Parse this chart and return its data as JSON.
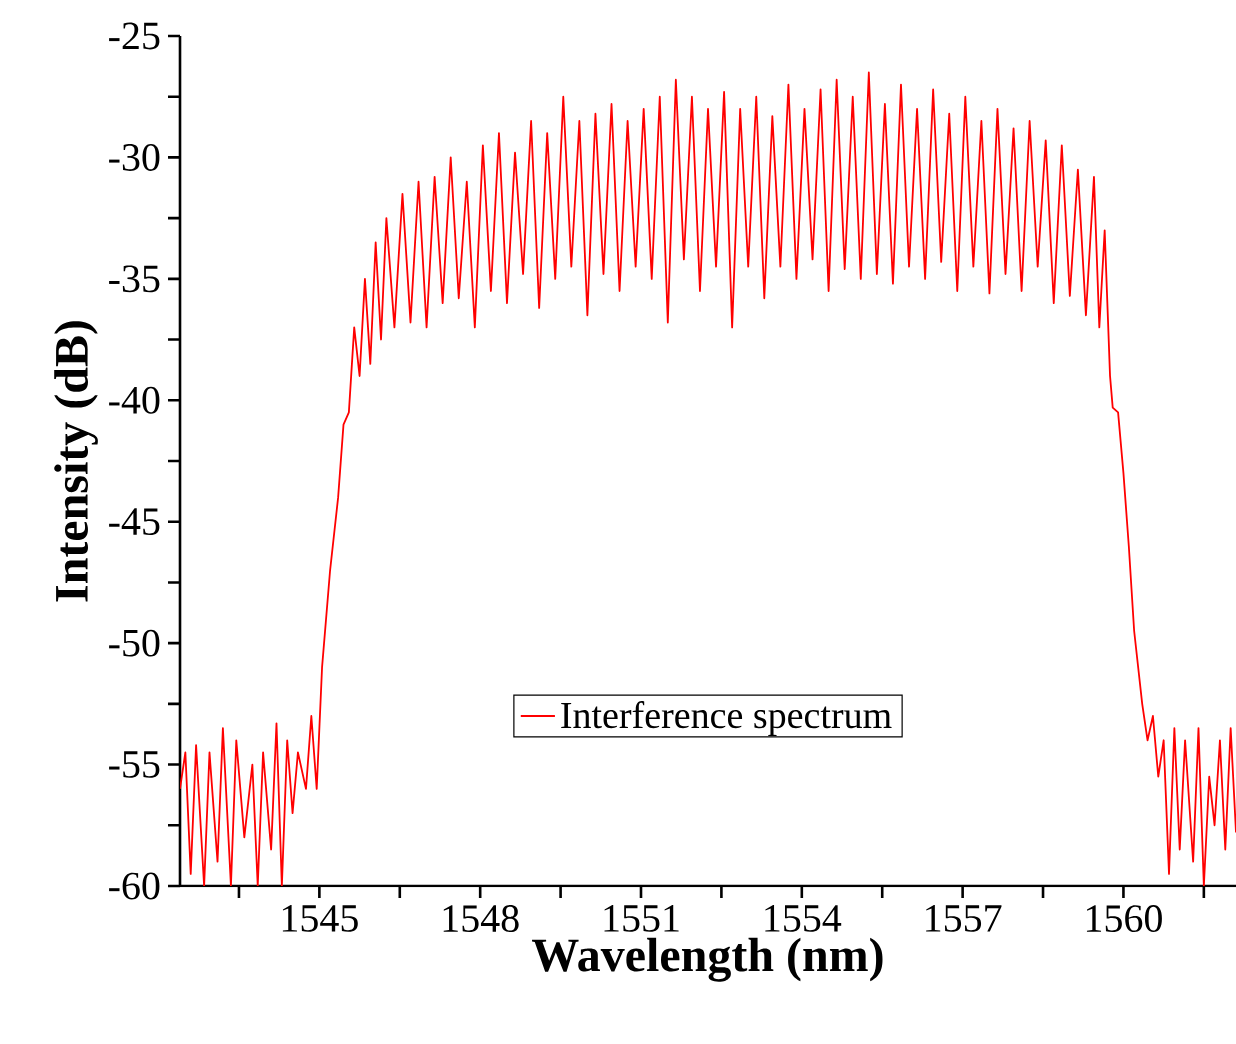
{
  "chart_data": {
    "type": "line",
    "xlabel": "Wavelength (nm)",
    "ylabel": "Intensity (dB)",
    "xlim": [
      1542.4,
      1562.1
    ],
    "ylim": [
      -60,
      -25
    ],
    "xticks": [
      {
        "value": 1543.5,
        "label": null
      },
      1545,
      {
        "value": 1546.5,
        "label": null
      },
      1548,
      {
        "value": 1549.5,
        "label": null
      },
      1551,
      {
        "value": 1552.5,
        "label": null
      },
      1554,
      {
        "value": 1555.5,
        "label": null
      },
      1557,
      {
        "value": 1558.5,
        "label": null
      },
      1560,
      {
        "value": 1561.5,
        "label": null
      }
    ],
    "yticks": [
      -60,
      {
        "value": -57.5,
        "label": null
      },
      -55,
      {
        "value": -52.5,
        "label": null
      },
      -50,
      {
        "value": -47.5,
        "label": null
      },
      -45,
      {
        "value": -42.5,
        "label": null
      },
      -40,
      {
        "value": -37.5,
        "label": null
      },
      -35,
      {
        "value": -32.5,
        "label": null
      },
      -30,
      {
        "value": -27.5,
        "label": null
      },
      -25
    ],
    "legend": "bottom",
    "grid": false,
    "marker": "none",
    "line_style": "solid",
    "series": [
      {
        "name": "Interference spectrum",
        "color": "#ff0000",
        "x": [
          1542.4,
          1542.5,
          1542.6,
          1542.7,
          1542.85,
          1542.95,
          1543.1,
          1543.2,
          1543.35,
          1543.45,
          1543.6,
          1543.75,
          1543.85,
          1543.95,
          1544.1,
          1544.2,
          1544.3,
          1544.4,
          1544.5,
          1544.6,
          1544.75,
          1544.85,
          1544.95,
          1545.05,
          1545.2,
          1545.35,
          1545.45,
          1545.55,
          1545.65,
          1545.75,
          1545.85,
          1545.95,
          1546.05,
          1546.15,
          1546.25,
          1546.4,
          1546.55,
          1546.7,
          1546.85,
          1547.0,
          1547.15,
          1547.3,
          1547.45,
          1547.6,
          1547.75,
          1547.9,
          1548.05,
          1548.2,
          1548.35,
          1548.5,
          1548.65,
          1548.8,
          1548.95,
          1549.1,
          1549.25,
          1549.4,
          1549.55,
          1549.7,
          1549.85,
          1550.0,
          1550.15,
          1550.3,
          1550.45,
          1550.6,
          1550.75,
          1550.9,
          1551.05,
          1551.2,
          1551.35,
          1551.5,
          1551.65,
          1551.8,
          1551.95,
          1552.1,
          1552.25,
          1552.4,
          1552.55,
          1552.7,
          1552.85,
          1553.0,
          1553.15,
          1553.3,
          1553.45,
          1553.6,
          1553.75,
          1553.9,
          1554.05,
          1554.2,
          1554.35,
          1554.5,
          1554.65,
          1554.8,
          1554.95,
          1555.1,
          1555.25,
          1555.4,
          1555.55,
          1555.7,
          1555.85,
          1556.0,
          1556.15,
          1556.3,
          1556.45,
          1556.6,
          1556.75,
          1556.9,
          1557.05,
          1557.2,
          1557.35,
          1557.5,
          1557.65,
          1557.8,
          1557.95,
          1558.1,
          1558.25,
          1558.4,
          1558.55,
          1558.7,
          1558.85,
          1559.0,
          1559.15,
          1559.3,
          1559.45,
          1559.55,
          1559.65,
          1559.75,
          1559.8,
          1559.9,
          1560.0,
          1560.1,
          1560.2,
          1560.3,
          1560.35,
          1560.45,
          1560.55,
          1560.65,
          1560.75,
          1560.85,
          1560.95,
          1561.05,
          1561.15,
          1561.3,
          1561.4,
          1561.5,
          1561.6,
          1561.7,
          1561.8,
          1561.9,
          1562.0,
          1562.1
        ],
        "values": [
          -56,
          -54.5,
          -59.5,
          -54.2,
          -60,
          -54.5,
          -59,
          -53.5,
          -60,
          -54,
          -58,
          -55,
          -60,
          -54.5,
          -58.5,
          -53.3,
          -60,
          -54,
          -57,
          -54.5,
          -56,
          -53,
          -56,
          -51,
          -47,
          -44,
          -41,
          -40.5,
          -37,
          -39,
          -35,
          -38.5,
          -33.5,
          -37.5,
          -32.5,
          -37,
          -31.5,
          -36.8,
          -31,
          -37,
          -30.8,
          -36,
          -30,
          -35.8,
          -31,
          -37,
          -29.5,
          -35.5,
          -29,
          -36,
          -29.8,
          -34.8,
          -28.5,
          -36.2,
          -29,
          -35,
          -27.5,
          -34.5,
          -28.5,
          -36.5,
          -28.2,
          -34.8,
          -27.8,
          -35.5,
          -28.5,
          -34.5,
          -28,
          -35,
          -27.5,
          -36.8,
          -26.8,
          -34.2,
          -27.5,
          -35.5,
          -28,
          -34.5,
          -27.3,
          -37,
          -28,
          -34.5,
          -27.5,
          -35.8,
          -28.3,
          -34.5,
          -27,
          -35,
          -28,
          -34.2,
          -27.2,
          -35.5,
          -26.8,
          -34.6,
          -27.5,
          -35,
          -26.5,
          -34.8,
          -27.8,
          -35.2,
          -27,
          -34.5,
          -28,
          -35,
          -27.2,
          -34.3,
          -28.2,
          -35.5,
          -27.5,
          -34.5,
          -28.5,
          -35.6,
          -28,
          -34.8,
          -28.8,
          -35.5,
          -28.5,
          -34.5,
          -29.3,
          -36,
          -29.5,
          -35.7,
          -30.5,
          -36.5,
          -30.8,
          -37,
          -33,
          -39,
          -40.3,
          -40.5,
          -43,
          -46,
          -49.5,
          -51.5,
          -52.5,
          -54,
          -53,
          -55.5,
          -54,
          -59.5,
          -53.5,
          -58.5,
          -54,
          -59,
          -53.5,
          -60,
          -55.5,
          -57.5,
          -54,
          -58.5,
          -53.5,
          -57.8
        ]
      }
    ]
  }
}
